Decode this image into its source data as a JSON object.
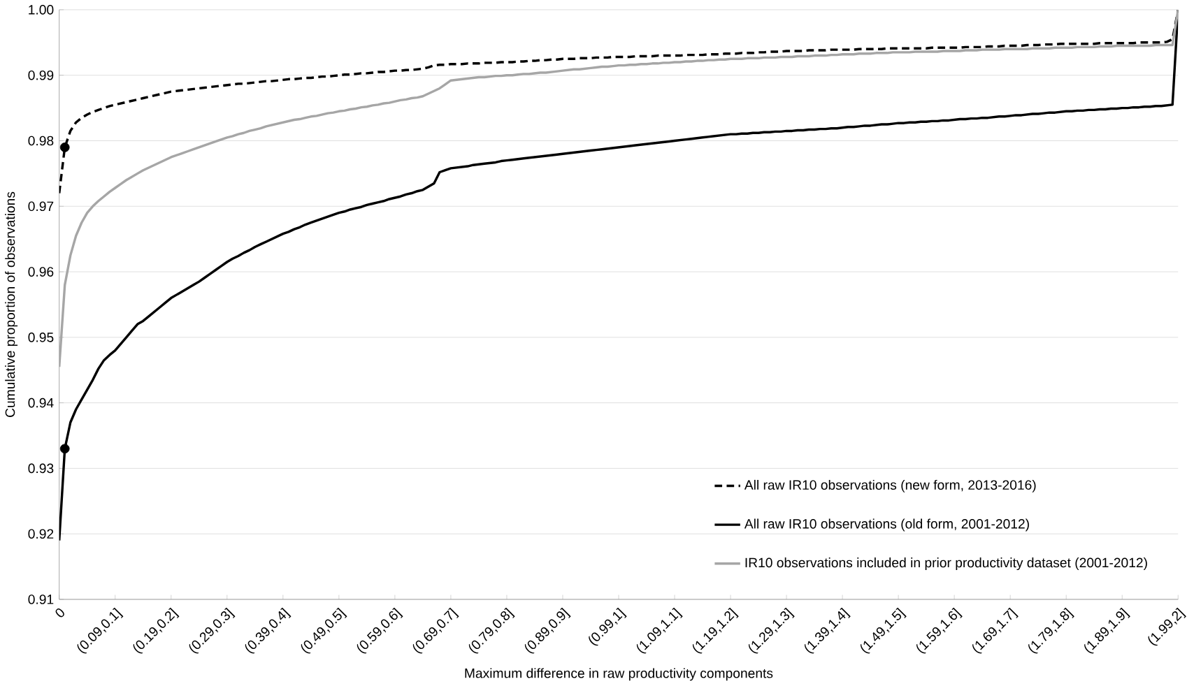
{
  "chart_data": {
    "type": "line",
    "xlabel": "Maximum difference in raw productivity components",
    "ylabel": "Cumulative proportion of observations",
    "categories": [
      "0",
      null,
      null,
      null,
      null,
      null,
      null,
      null,
      null,
      null,
      "(0.09,0.1]",
      null,
      null,
      null,
      null,
      null,
      null,
      null,
      null,
      null,
      "(0.19,0.2]",
      null,
      null,
      null,
      null,
      null,
      null,
      null,
      null,
      null,
      "(0.29,0.3]",
      null,
      null,
      null,
      null,
      null,
      null,
      null,
      null,
      null,
      "(0.39,0.4]",
      null,
      null,
      null,
      null,
      null,
      null,
      null,
      null,
      null,
      "(0.49,0.5]",
      null,
      null,
      null,
      null,
      null,
      null,
      null,
      null,
      null,
      "(0.59,0.6]",
      null,
      null,
      null,
      null,
      null,
      null,
      null,
      null,
      null,
      "(0.69,0.7]",
      null,
      null,
      null,
      null,
      null,
      null,
      null,
      null,
      null,
      "(0.79,0.8]",
      null,
      null,
      null,
      null,
      null,
      null,
      null,
      null,
      null,
      "(0.89,0.9]",
      null,
      null,
      null,
      null,
      null,
      null,
      null,
      null,
      null,
      "(0.99,1]",
      null,
      null,
      null,
      null,
      null,
      null,
      null,
      null,
      null,
      "(1.09,1.1]",
      null,
      null,
      null,
      null,
      null,
      null,
      null,
      null,
      null,
      "(1.19,1.2]",
      null,
      null,
      null,
      null,
      null,
      null,
      null,
      null,
      null,
      "(1.29,1.3]",
      null,
      null,
      null,
      null,
      null,
      null,
      null,
      null,
      null,
      "(1.39,1.4]",
      null,
      null,
      null,
      null,
      null,
      null,
      null,
      null,
      null,
      "(1.49,1.5]",
      null,
      null,
      null,
      null,
      null,
      null,
      null,
      null,
      null,
      "(1.59,1.6]",
      null,
      null,
      null,
      null,
      null,
      null,
      null,
      null,
      null,
      "(1.69,1.7]",
      null,
      null,
      null,
      null,
      null,
      null,
      null,
      null,
      null,
      "(1.79,1.8]",
      null,
      null,
      null,
      null,
      null,
      null,
      null,
      null,
      null,
      "(1.89,1.9]",
      null,
      null,
      null,
      null,
      null,
      null,
      null,
      null,
      null,
      "(1.99,2]"
    ],
    "ylim": [
      0.91,
      1.0
    ],
    "yticks": [
      0.91,
      0.92,
      0.93,
      0.94,
      0.95,
      0.96,
      0.97,
      0.98,
      0.99,
      {
        "value": 1.0,
        "label": "1.00"
      }
    ],
    "grid": "y",
    "legend": "bottom right",
    "series": [
      {
        "name": "All raw IR10 observations (new form, 2013-2016)",
        "color": "#000000",
        "line_style": "dashed",
        "values": [
          0.972,
          0.979,
          0.9815,
          0.9828,
          0.9835,
          0.984,
          0.9844,
          0.9847,
          0.985,
          0.9853,
          0.9855,
          0.9857,
          0.9859,
          0.9861,
          0.9863,
          0.9865,
          0.9867,
          0.9869,
          0.9871,
          0.9873,
          0.9875,
          0.9876,
          0.9877,
          0.9878,
          0.9879,
          0.988,
          0.9881,
          0.9882,
          0.9883,
          0.9884,
          0.9885,
          0.9886,
          0.9887,
          0.9887,
          0.9888,
          0.9889,
          0.989,
          0.9891,
          0.9891,
          0.9892,
          0.9893,
          0.9894,
          0.9894,
          0.9895,
          0.9896,
          0.9896,
          0.9897,
          0.9898,
          0.9898,
          0.9899,
          0.99,
          0.9901,
          0.9901,
          0.9902,
          0.9903,
          0.9903,
          0.9904,
          0.9905,
          0.9905,
          0.9906,
          0.9907,
          0.9907,
          0.9908,
          0.9908,
          0.9909,
          0.991,
          0.9912,
          0.9915,
          0.9916,
          0.9916,
          0.9917,
          0.9917,
          0.9917,
          0.9918,
          0.9918,
          0.9918,
          0.9919,
          0.9919,
          0.9919,
          0.992,
          0.992,
          0.992,
          0.9921,
          0.9921,
          0.9922,
          0.9922,
          0.9923,
          0.9923,
          0.9924,
          0.9924,
          0.9925,
          0.9925,
          0.9925,
          0.9926,
          0.9926,
          0.9926,
          0.9927,
          0.9927,
          0.9927,
          0.9928,
          0.9928,
          0.9928,
          0.9928,
          0.9929,
          0.9929,
          0.9929,
          0.9929,
          0.993,
          0.993,
          0.993,
          0.993,
          0.993,
          0.9931,
          0.9931,
          0.9931,
          0.9931,
          0.9932,
          0.9932,
          0.9932,
          0.9933,
          0.9933,
          0.9933,
          0.9934,
          0.9934,
          0.9934,
          0.9935,
          0.9935,
          0.9936,
          0.9936,
          0.9936,
          0.9937,
          0.9937,
          0.9937,
          0.9937,
          0.9938,
          0.9938,
          0.9938,
          0.9938,
          0.9939,
          0.9939,
          0.9939,
          0.9939,
          0.9939,
          0.994,
          0.994,
          0.994,
          0.994,
          0.994,
          0.9941,
          0.9941,
          0.9941,
          0.9941,
          0.9941,
          0.9941,
          0.9941,
          0.9941,
          0.9942,
          0.9942,
          0.9942,
          0.9942,
          0.9942,
          0.9942,
          0.9943,
          0.9943,
          0.9943,
          0.9943,
          0.9944,
          0.9944,
          0.9944,
          0.9945,
          0.9945,
          0.9945,
          0.9945,
          0.9946,
          0.9946,
          0.9946,
          0.9947,
          0.9947,
          0.9947,
          0.9948,
          0.9948,
          0.9948,
          0.9948,
          0.9948,
          0.9948,
          0.9948,
          0.9949,
          0.9949,
          0.9949,
          0.9949,
          0.9949,
          0.9949,
          0.9949,
          0.995,
          0.995,
          0.995,
          0.995,
          0.995,
          0.9951,
          0.9955,
          1.0
        ]
      },
      {
        "name": "All raw IR10 observations (old form, 2001-2012)",
        "color": "#000000",
        "line_style": "solid",
        "values": [
          0.919,
          0.933,
          0.937,
          0.939,
          0.9405,
          0.942,
          0.9435,
          0.9452,
          0.9465,
          0.9473,
          0.948,
          0.949,
          0.95,
          0.951,
          0.952,
          0.9525,
          0.9532,
          0.9539,
          0.9546,
          0.9553,
          0.956,
          0.9565,
          0.957,
          0.9575,
          0.958,
          0.9585,
          0.9591,
          0.9597,
          0.9603,
          0.9609,
          0.9615,
          0.962,
          0.9624,
          0.9629,
          0.9633,
          0.9638,
          0.9642,
          0.9646,
          0.965,
          0.9654,
          0.9658,
          0.9661,
          0.9665,
          0.9668,
          0.9672,
          0.9675,
          0.9678,
          0.9681,
          0.9684,
          0.9687,
          0.969,
          0.9692,
          0.9695,
          0.9697,
          0.9699,
          0.9702,
          0.9704,
          0.9706,
          0.9708,
          0.9711,
          0.9713,
          0.9715,
          0.9718,
          0.972,
          0.9723,
          0.9725,
          0.973,
          0.9735,
          0.9752,
          0.9755,
          0.9758,
          0.9759,
          0.976,
          0.9761,
          0.9763,
          0.9764,
          0.9765,
          0.9766,
          0.9767,
          0.9769,
          0.977,
          0.9771,
          0.9772,
          0.9773,
          0.9774,
          0.9775,
          0.9776,
          0.9777,
          0.9778,
          0.9779,
          0.978,
          0.9781,
          0.9782,
          0.9783,
          0.9784,
          0.9785,
          0.9786,
          0.9787,
          0.9788,
          0.9789,
          0.979,
          0.9791,
          0.9792,
          0.9793,
          0.9794,
          0.9795,
          0.9796,
          0.9797,
          0.9798,
          0.9799,
          0.98,
          0.9801,
          0.9802,
          0.9803,
          0.9804,
          0.9805,
          0.9806,
          0.9807,
          0.9808,
          0.9809,
          0.981,
          0.981,
          0.9811,
          0.9811,
          0.9812,
          0.9812,
          0.9813,
          0.9813,
          0.9814,
          0.9814,
          0.9815,
          0.9815,
          0.9816,
          0.9816,
          0.9817,
          0.9817,
          0.9818,
          0.9818,
          0.9819,
          0.9819,
          0.982,
          0.9821,
          0.9821,
          0.9822,
          0.9823,
          0.9823,
          0.9824,
          0.9825,
          0.9825,
          0.9826,
          0.9827,
          0.9827,
          0.9828,
          0.9828,
          0.9829,
          0.9829,
          0.983,
          0.983,
          0.9831,
          0.9831,
          0.9832,
          0.9833,
          0.9833,
          0.9834,
          0.9834,
          0.9835,
          0.9835,
          0.9836,
          0.9837,
          0.9837,
          0.9838,
          0.9839,
          0.9839,
          0.984,
          0.9841,
          0.9841,
          0.9842,
          0.9843,
          0.9843,
          0.9844,
          0.9845,
          0.9845,
          0.9846,
          0.9846,
          0.9847,
          0.9847,
          0.9848,
          0.9848,
          0.9849,
          0.9849,
          0.985,
          0.985,
          0.9851,
          0.9851,
          0.9852,
          0.9852,
          0.9853,
          0.9853,
          0.9854,
          0.9855,
          1.0
        ]
      },
      {
        "name": "IR10 observations included in prior productivity dataset (2001-2012)",
        "color": "#a6a6a6",
        "line_style": "solid",
        "values": [
          0.9455,
          0.958,
          0.9625,
          0.9655,
          0.9675,
          0.969,
          0.97,
          0.9708,
          0.9715,
          0.9722,
          0.9728,
          0.9734,
          0.974,
          0.9745,
          0.975,
          0.9755,
          0.9759,
          0.9763,
          0.9767,
          0.9771,
          0.9775,
          0.9778,
          0.9781,
          0.9784,
          0.9787,
          0.979,
          0.9793,
          0.9796,
          0.9799,
          0.9802,
          0.9805,
          0.9807,
          0.981,
          0.9812,
          0.9815,
          0.9817,
          0.9819,
          0.9822,
          0.9824,
          0.9826,
          0.9828,
          0.983,
          0.9832,
          0.9833,
          0.9835,
          0.9837,
          0.9838,
          0.984,
          0.9842,
          0.9843,
          0.9845,
          0.9846,
          0.9848,
          0.9849,
          0.9851,
          0.9852,
          0.9854,
          0.9855,
          0.9857,
          0.9858,
          0.986,
          0.9862,
          0.9863,
          0.9865,
          0.9866,
          0.9868,
          0.9872,
          0.9876,
          0.988,
          0.9886,
          0.9892,
          0.9893,
          0.9894,
          0.9895,
          0.9896,
          0.9897,
          0.9897,
          0.9898,
          0.9899,
          0.9899,
          0.99,
          0.99,
          0.9901,
          0.9902,
          0.9902,
          0.9903,
          0.9904,
          0.9904,
          0.9905,
          0.9906,
          0.9907,
          0.9908,
          0.9909,
          0.9909,
          0.991,
          0.9911,
          0.9912,
          0.9913,
          0.9913,
          0.9914,
          0.9915,
          0.9915,
          0.9916,
          0.9916,
          0.9917,
          0.9917,
          0.9918,
          0.9918,
          0.9919,
          0.9919,
          0.992,
          0.992,
          0.9921,
          0.9921,
          0.9922,
          0.9922,
          0.9923,
          0.9923,
          0.9924,
          0.9924,
          0.9925,
          0.9925,
          0.9925,
          0.9926,
          0.9926,
          0.9926,
          0.9927,
          0.9927,
          0.9927,
          0.9928,
          0.9928,
          0.9928,
          0.9929,
          0.9929,
          0.9929,
          0.993,
          0.993,
          0.993,
          0.9931,
          0.9931,
          0.9932,
          0.9932,
          0.9932,
          0.9933,
          0.9933,
          0.9933,
          0.9934,
          0.9934,
          0.9934,
          0.9935,
          0.9935,
          0.9935,
          0.9935,
          0.9936,
          0.9936,
          0.9936,
          0.9936,
          0.9936,
          0.9937,
          0.9937,
          0.9937,
          0.9937,
          0.9938,
          0.9938,
          0.9938,
          0.9939,
          0.9939,
          0.9939,
          0.9939,
          0.994,
          0.994,
          0.994,
          0.994,
          0.994,
          0.9941,
          0.9941,
          0.9941,
          0.9941,
          0.9942,
          0.9942,
          0.9942,
          0.9942,
          0.9943,
          0.9943,
          0.9943,
          0.9943,
          0.9944,
          0.9944,
          0.9944,
          0.9945,
          0.9945,
          0.9945,
          0.9945,
          0.9945,
          0.9945,
          0.9945,
          0.9946,
          0.9946,
          0.9946,
          0.9946,
          1.0
        ]
      },
      {
        "type": "scatter",
        "color": "#000000",
        "marker": "circle",
        "values": [
          null,
          0.979,
          null,
          null,
          null,
          null,
          null,
          null,
          null,
          null,
          null,
          null,
          null,
          null,
          null,
          null,
          null,
          null,
          null,
          null,
          null,
          null,
          null,
          null,
          null,
          null,
          null,
          null,
          null,
          null,
          null,
          null,
          null,
          null,
          null,
          null,
          null,
          null,
          null,
          null,
          null,
          null,
          null,
          null,
          null,
          null,
          null,
          null,
          null,
          null,
          null,
          null,
          null,
          null,
          null,
          null,
          null,
          null,
          null,
          null,
          null,
          null,
          null,
          null,
          null,
          null,
          null,
          null,
          null,
          null,
          null,
          null,
          null,
          null,
          null,
          null,
          null,
          null,
          null,
          null,
          null,
          null,
          null,
          null,
          null,
          null,
          null,
          null,
          null,
          null,
          null,
          null,
          null,
          null,
          null,
          null,
          null,
          null,
          null,
          null,
          null,
          null,
          null,
          null,
          null,
          null,
          null,
          null,
          null,
          null,
          null,
          null,
          null,
          null,
          null,
          null,
          null,
          null,
          null,
          null,
          null,
          null,
          null,
          null,
          null,
          null,
          null,
          null,
          null,
          null,
          null,
          null,
          null,
          null,
          null,
          null,
          null,
          null,
          null,
          null,
          null,
          null,
          null,
          null,
          null,
          null,
          null,
          null,
          null,
          null,
          null,
          null,
          null,
          null,
          null,
          null,
          null,
          null,
          null,
          null,
          null,
          null,
          null,
          null,
          null,
          null,
          null,
          null,
          null,
          null,
          null,
          null,
          null,
          null,
          null,
          null,
          null,
          null,
          null,
          null,
          null,
          null,
          null,
          null,
          null,
          null,
          null,
          null,
          null,
          null,
          null,
          null,
          null,
          null,
          null,
          null,
          null,
          null,
          null,
          null,
          null
        ]
      },
      {
        "type": "scatter",
        "color": "#000000",
        "marker": "circle",
        "values": [
          null,
          0.933,
          null,
          null,
          null,
          null,
          null,
          null,
          null,
          null,
          null,
          null,
          null,
          null,
          null,
          null,
          null,
          null,
          null,
          null,
          null,
          null,
          null,
          null,
          null,
          null,
          null,
          null,
          null,
          null,
          null,
          null,
          null,
          null,
          null,
          null,
          null,
          null,
          null,
          null,
          null,
          null,
          null,
          null,
          null,
          null,
          null,
          null,
          null,
          null,
          null,
          null,
          null,
          null,
          null,
          null,
          null,
          null,
          null,
          null,
          null,
          null,
          null,
          null,
          null,
          null,
          null,
          null,
          null,
          null,
          null,
          null,
          null,
          null,
          null,
          null,
          null,
          null,
          null,
          null,
          null,
          null,
          null,
          null,
          null,
          null,
          null,
          null,
          null,
          null,
          null,
          null,
          null,
          null,
          null,
          null,
          null,
          null,
          null,
          null,
          null,
          null,
          null,
          null,
          null,
          null,
          null,
          null,
          null,
          null,
          null,
          null,
          null,
          null,
          null,
          null,
          null,
          null,
          null,
          null,
          null,
          null,
          null,
          null,
          null,
          null,
          null,
          null,
          null,
          null,
          null,
          null,
          null,
          null,
          null,
          null,
          null,
          null,
          null,
          null,
          null,
          null,
          null,
          null,
          null,
          null,
          null,
          null,
          null,
          null,
          null,
          null,
          null,
          null,
          null,
          null,
          null,
          null,
          null,
          null,
          null,
          null,
          null,
          null,
          null,
          null,
          null,
          null,
          null,
          null,
          null,
          null,
          null,
          null,
          null,
          null,
          null,
          null,
          null,
          null,
          null,
          null,
          null,
          null,
          null,
          null,
          null,
          null,
          null,
          null,
          null,
          null,
          null,
          null,
          null,
          null,
          null,
          null,
          null,
          null,
          null
        ]
      }
    ]
  }
}
